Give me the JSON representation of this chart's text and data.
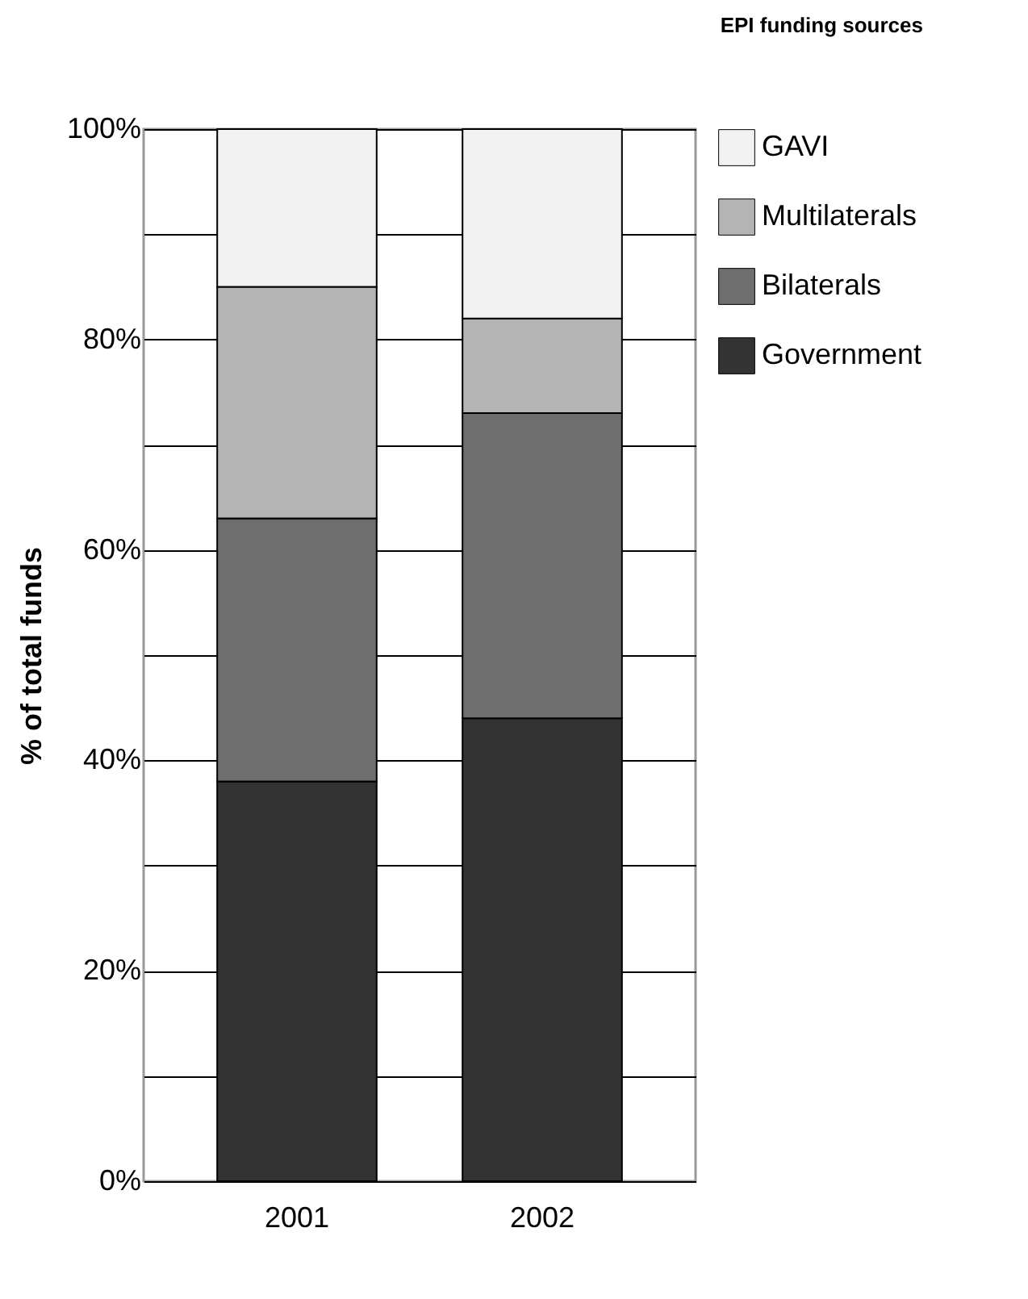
{
  "chart_data": {
    "type": "bar",
    "title": "EPI funding sources",
    "ylabel": "% of total funds",
    "categories": [
      "2001",
      "2002"
    ],
    "stacked": true,
    "series": [
      {
        "name": "Government",
        "color": "#333333",
        "values": [
          38,
          44
        ]
      },
      {
        "name": "Bilaterals",
        "color": "#6e6e6e",
        "values": [
          25,
          29
        ]
      },
      {
        "name": "Multilaterals",
        "color": "#b4b4b4",
        "values": [
          22,
          9
        ]
      },
      {
        "name": "GAVI",
        "color": "#f2f2f2",
        "values": [
          15,
          18
        ]
      }
    ],
    "ylim": [
      0,
      100
    ],
    "yticks": [
      {
        "value": 0,
        "label": "0%"
      },
      {
        "value": 10,
        "label": null
      },
      {
        "value": 20,
        "label": "20%"
      },
      {
        "value": 30,
        "label": null
      },
      {
        "value": 40,
        "label": "40%"
      },
      {
        "value": 50,
        "label": null
      },
      {
        "value": 60,
        "label": "60%"
      },
      {
        "value": 70,
        "label": null
      },
      {
        "value": 80,
        "label": "80%"
      },
      {
        "value": 90,
        "label": null
      },
      {
        "value": 100,
        "label": "100%"
      }
    ],
    "grid": "y",
    "legend": "right"
  }
}
